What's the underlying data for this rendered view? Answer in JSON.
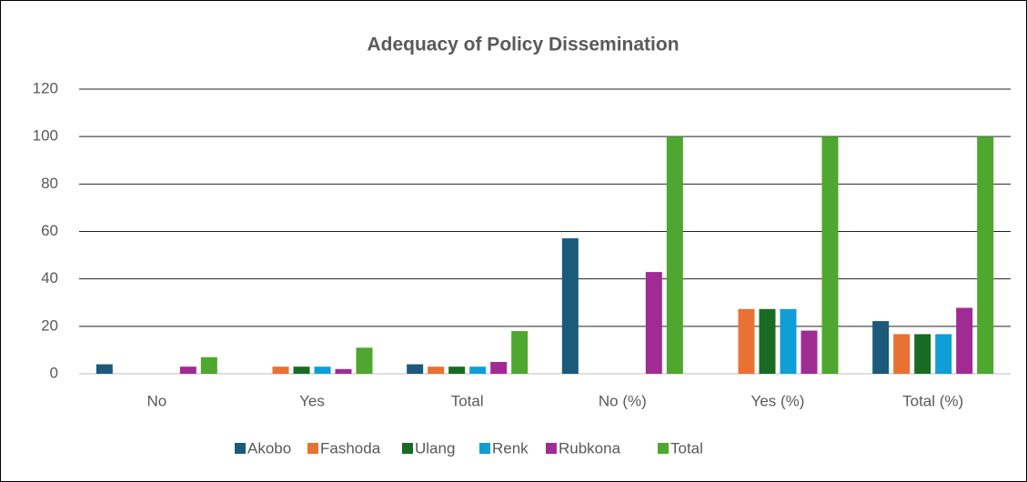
{
  "chart_data": {
    "type": "bar",
    "title": "Adequacy of Policy Dissemination",
    "categories": [
      "No",
      "Yes",
      "Total",
      "No (%)",
      "Yes (%)",
      "Total (%)"
    ],
    "series": [
      {
        "name": "Akobo",
        "color": "#1b5a7b",
        "values": [
          4,
          0,
          4,
          57.1,
          0,
          22.2
        ]
      },
      {
        "name": "Fashoda",
        "color": "#e97132",
        "values": [
          0,
          3,
          3,
          0,
          27.3,
          16.7
        ]
      },
      {
        "name": "Ulang",
        "color": "#196b24",
        "values": [
          0,
          3,
          3,
          0,
          27.3,
          16.7
        ]
      },
      {
        "name": "Renk",
        "color": "#0f9ed5",
        "values": [
          0,
          3,
          3,
          0,
          27.3,
          16.7
        ]
      },
      {
        "name": "Rubkona",
        "color": "#a02b93",
        "values": [
          3,
          2,
          5,
          42.9,
          18.2,
          27.8
        ]
      },
      {
        "name": "Total",
        "color": "#4ea72e",
        "values": [
          7,
          11,
          18,
          100,
          100,
          100
        ]
      }
    ],
    "ylim": [
      0,
      120
    ],
    "yticks": [
      0,
      20,
      40,
      60,
      80,
      100,
      120
    ],
    "grid": true,
    "legend": "bottom"
  }
}
